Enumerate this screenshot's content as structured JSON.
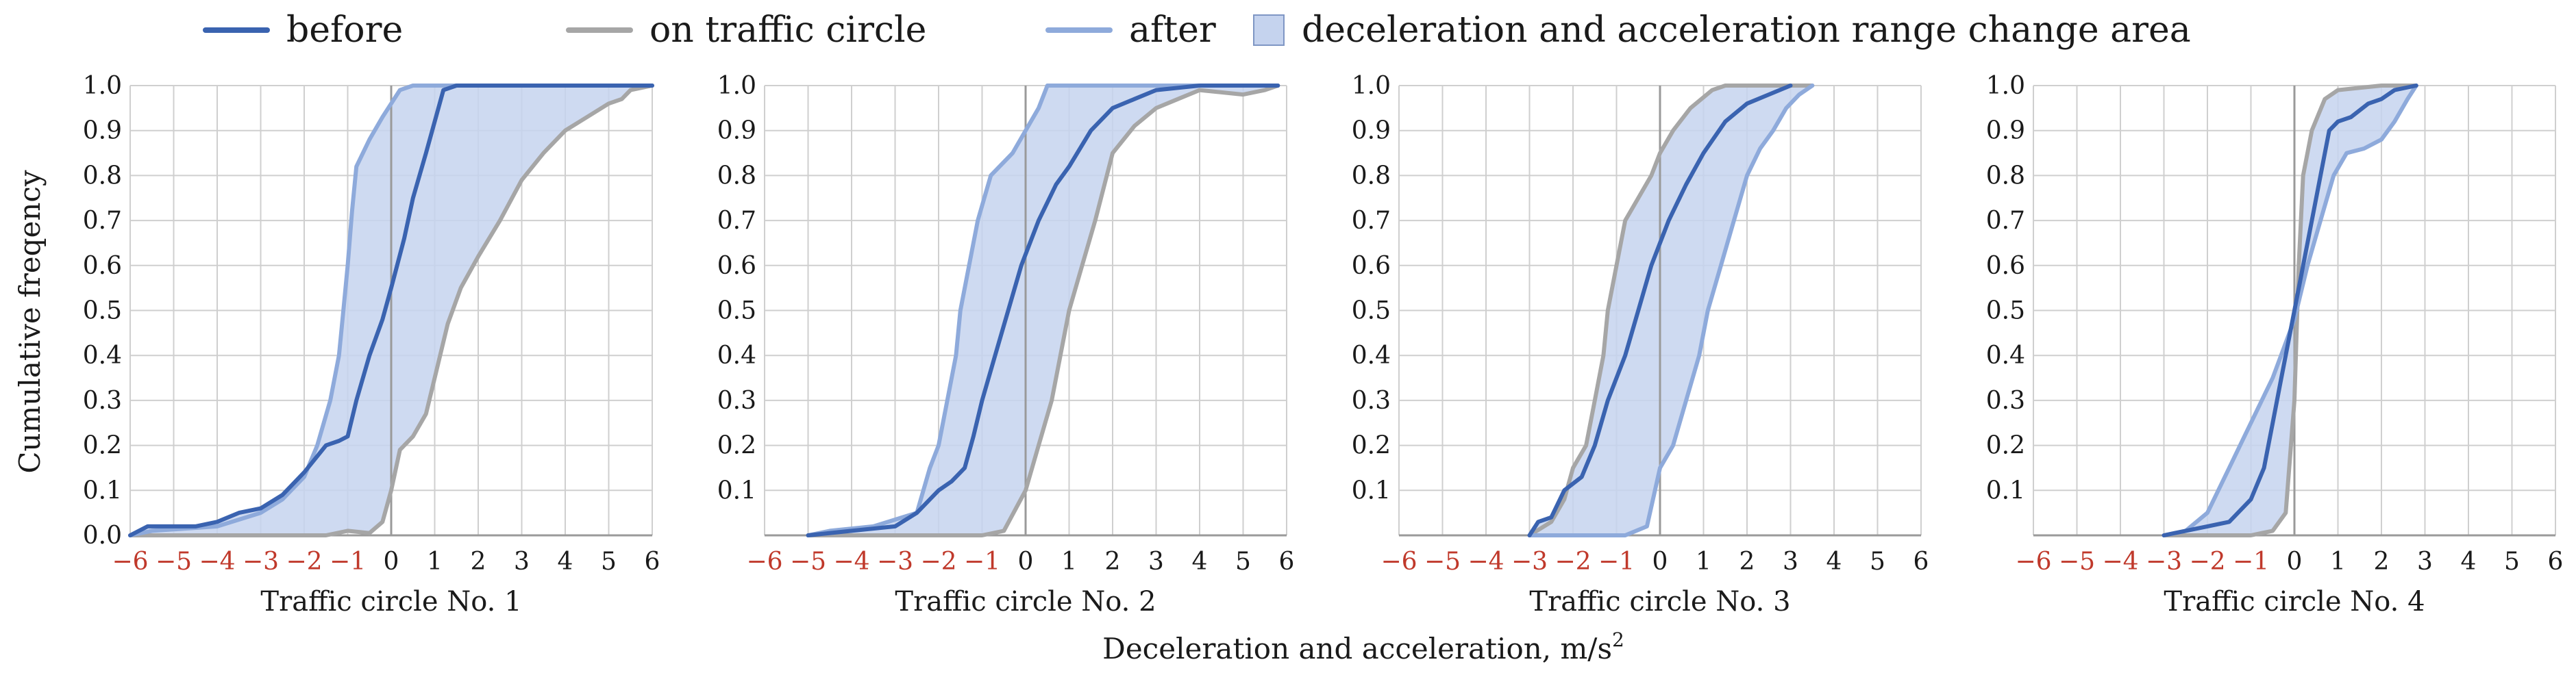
{
  "chart_data": {
    "type": "line",
    "ylabel": "Cumulative freqency",
    "xlabel": "Deceleration and acceleration, m/s",
    "xlabel_sup": "2",
    "xlim": [
      -6,
      6
    ],
    "ylim": [
      0,
      1
    ],
    "xticks": [
      "−6",
      "−5",
      "−4",
      "−3",
      "−2",
      "−1",
      "0",
      "1",
      "2",
      "3",
      "4",
      "5",
      "6"
    ],
    "yticks": [
      "0.0",
      "0.1",
      "0.2",
      "0.3",
      "0.4",
      "0.5",
      "0.6",
      "0.7",
      "0.8",
      "0.9",
      "1.0"
    ],
    "legend": {
      "position": "top",
      "entries": [
        {
          "key": "before",
          "label": "before"
        },
        {
          "key": "on",
          "label": "on traffic circle"
        },
        {
          "key": "after",
          "label": "after"
        },
        {
          "key": "area",
          "label": "deceleration and acceleration range change area"
        }
      ]
    },
    "colors": {
      "before": "#3a63b0",
      "on": "#a6a6a6",
      "after": "#8eaadb",
      "area": "#c5d3ee",
      "area_edge": "#7f96c4",
      "grid": "#cfcfcf",
      "axis": "#9a9a9a"
    },
    "panels": [
      {
        "title": "Traffic circle No. 1",
        "series": [
          {
            "key": "before",
            "name": "before",
            "points": [
              [
                -6,
                0
              ],
              [
                -5.6,
                0.02
              ],
              [
                -5,
                0.02
              ],
              [
                -4.5,
                0.02
              ],
              [
                -4,
                0.03
              ],
              [
                -3.5,
                0.05
              ],
              [
                -3,
                0.06
              ],
              [
                -2.5,
                0.09
              ],
              [
                -2,
                0.14
              ],
              [
                -1.5,
                0.2
              ],
              [
                -1.2,
                0.21
              ],
              [
                -1,
                0.22
              ],
              [
                -0.8,
                0.3
              ],
              [
                -0.5,
                0.4
              ],
              [
                -0.2,
                0.48
              ],
              [
                0,
                0.55
              ],
              [
                0.3,
                0.66
              ],
              [
                0.5,
                0.75
              ],
              [
                0.8,
                0.85
              ],
              [
                1,
                0.92
              ],
              [
                1.2,
                0.99
              ],
              [
                1.5,
                1
              ],
              [
                6,
                1
              ]
            ]
          },
          {
            "key": "on",
            "name": "on traffic circle",
            "points": [
              [
                -6,
                0
              ],
              [
                -1.5,
                0
              ],
              [
                -1,
                0.01
              ],
              [
                -0.5,
                0.005
              ],
              [
                -0.2,
                0.03
              ],
              [
                0,
                0.1
              ],
              [
                0.2,
                0.19
              ],
              [
                0.5,
                0.22
              ],
              [
                0.8,
                0.27
              ],
              [
                1,
                0.35
              ],
              [
                1.3,
                0.47
              ],
              [
                1.6,
                0.55
              ],
              [
                2,
                0.62
              ],
              [
                2.5,
                0.7
              ],
              [
                3,
                0.79
              ],
              [
                3.5,
                0.85
              ],
              [
                4,
                0.9
              ],
              [
                4.5,
                0.93
              ],
              [
                5,
                0.96
              ],
              [
                5.3,
                0.97
              ],
              [
                5.5,
                0.99
              ],
              [
                6,
                1
              ]
            ]
          },
          {
            "key": "after",
            "name": "after",
            "points": [
              [
                -6,
                0
              ],
              [
                -5.5,
                0.01
              ],
              [
                -4,
                0.02
              ],
              [
                -3,
                0.05
              ],
              [
                -2.5,
                0.08
              ],
              [
                -2,
                0.13
              ],
              [
                -1.7,
                0.2
              ],
              [
                -1.4,
                0.3
              ],
              [
                -1.2,
                0.4
              ],
              [
                -1.1,
                0.5
              ],
              [
                -1,
                0.6
              ],
              [
                -0.9,
                0.72
              ],
              [
                -0.8,
                0.82
              ],
              [
                -0.5,
                0.88
              ],
              [
                -0.2,
                0.93
              ],
              [
                0.2,
                0.99
              ],
              [
                0.5,
                1
              ],
              [
                6,
                1
              ]
            ]
          }
        ]
      },
      {
        "title": "Traffic circle No. 2",
        "series": [
          {
            "key": "before",
            "name": "before",
            "points": [
              [
                -5,
                0
              ],
              [
                -4,
                0.01
              ],
              [
                -3,
                0.02
              ],
              [
                -2.5,
                0.05
              ],
              [
                -2,
                0.1
              ],
              [
                -1.7,
                0.12
              ],
              [
                -1.4,
                0.15
              ],
              [
                -1.2,
                0.22
              ],
              [
                -1,
                0.3
              ],
              [
                -0.7,
                0.4
              ],
              [
                -0.4,
                0.5
              ],
              [
                -0.1,
                0.6
              ],
              [
                0.3,
                0.7
              ],
              [
                0.7,
                0.78
              ],
              [
                1,
                0.82
              ],
              [
                1.5,
                0.9
              ],
              [
                2,
                0.95
              ],
              [
                2.5,
                0.97
              ],
              [
                3,
                0.99
              ],
              [
                4,
                1
              ],
              [
                5.8,
                1
              ]
            ]
          },
          {
            "key": "on",
            "name": "on traffic circle",
            "points": [
              [
                -5,
                0
              ],
              [
                -1,
                0
              ],
              [
                -0.5,
                0.01
              ],
              [
                0,
                0.1
              ],
              [
                0.3,
                0.2
              ],
              [
                0.6,
                0.3
              ],
              [
                0.8,
                0.4
              ],
              [
                1,
                0.5
              ],
              [
                1.3,
                0.6
              ],
              [
                1.6,
                0.7
              ],
              [
                2,
                0.85
              ],
              [
                2.5,
                0.91
              ],
              [
                3,
                0.95
              ],
              [
                3.5,
                0.97
              ],
              [
                4,
                0.99
              ],
              [
                5,
                0.98
              ],
              [
                5.5,
                0.99
              ],
              [
                5.8,
                1
              ]
            ]
          },
          {
            "key": "after",
            "name": "after",
            "points": [
              [
                -5,
                0
              ],
              [
                -4.5,
                0.01
              ],
              [
                -3.5,
                0.02
              ],
              [
                -2.5,
                0.05
              ],
              [
                -2.2,
                0.15
              ],
              [
                -2,
                0.2
              ],
              [
                -1.8,
                0.3
              ],
              [
                -1.6,
                0.4
              ],
              [
                -1.5,
                0.5
              ],
              [
                -1.3,
                0.6
              ],
              [
                -1.1,
                0.7
              ],
              [
                -0.8,
                0.8
              ],
              [
                -0.3,
                0.85
              ],
              [
                0,
                0.9
              ],
              [
                0.3,
                0.95
              ],
              [
                0.5,
                1
              ],
              [
                5.8,
                1
              ]
            ]
          }
        ]
      },
      {
        "title": "Traffic circle No. 3",
        "series": [
          {
            "key": "before",
            "name": "before",
            "points": [
              [
                -3,
                0
              ],
              [
                -2.8,
                0.03
              ],
              [
                -2.5,
                0.04
              ],
              [
                -2.2,
                0.1
              ],
              [
                -1.8,
                0.13
              ],
              [
                -1.5,
                0.2
              ],
              [
                -1.2,
                0.3
              ],
              [
                -0.8,
                0.4
              ],
              [
                -0.5,
                0.5
              ],
              [
                -0.2,
                0.6
              ],
              [
                0.2,
                0.7
              ],
              [
                0.6,
                0.78
              ],
              [
                1,
                0.85
              ],
              [
                1.5,
                0.92
              ],
              [
                2,
                0.96
              ],
              [
                2.5,
                0.98
              ],
              [
                3,
                1
              ]
            ]
          },
          {
            "key": "on",
            "name": "on traffic circle",
            "points": [
              [
                -3,
                0
              ],
              [
                -2.5,
                0.03
              ],
              [
                -2.2,
                0.08
              ],
              [
                -2,
                0.15
              ],
              [
                -1.7,
                0.2
              ],
              [
                -1.5,
                0.3
              ],
              [
                -1.3,
                0.4
              ],
              [
                -1.2,
                0.5
              ],
              [
                -1,
                0.6
              ],
              [
                -0.8,
                0.7
              ],
              [
                -0.5,
                0.75
              ],
              [
                -0.2,
                0.8
              ],
              [
                0,
                0.85
              ],
              [
                0.3,
                0.9
              ],
              [
                0.7,
                0.95
              ],
              [
                1.2,
                0.99
              ],
              [
                1.5,
                1
              ],
              [
                3.5,
                1
              ]
            ]
          },
          {
            "key": "after",
            "name": "after",
            "points": [
              [
                -3,
                0
              ],
              [
                -0.8,
                0
              ],
              [
                -0.3,
                0.02
              ],
              [
                0,
                0.15
              ],
              [
                0.3,
                0.2
              ],
              [
                0.6,
                0.3
              ],
              [
                0.9,
                0.4
              ],
              [
                1.1,
                0.5
              ],
              [
                1.4,
                0.6
              ],
              [
                1.7,
                0.7
              ],
              [
                2,
                0.8
              ],
              [
                2.3,
                0.86
              ],
              [
                2.6,
                0.9
              ],
              [
                2.9,
                0.95
              ],
              [
                3.2,
                0.98
              ],
              [
                3.5,
                1
              ]
            ]
          }
        ]
      },
      {
        "title": "Traffic circle No. 4",
        "series": [
          {
            "key": "before",
            "name": "before",
            "points": [
              [
                -3,
                0
              ],
              [
                -2.5,
                0.01
              ],
              [
                -2,
                0.02
              ],
              [
                -1.5,
                0.03
              ],
              [
                -1,
                0.08
              ],
              [
                -0.7,
                0.15
              ],
              [
                -0.5,
                0.25
              ],
              [
                -0.3,
                0.35
              ],
              [
                0,
                0.5
              ],
              [
                0.3,
                0.65
              ],
              [
                0.6,
                0.8
              ],
              [
                0.8,
                0.9
              ],
              [
                1,
                0.92
              ],
              [
                1.3,
                0.93
              ],
              [
                1.7,
                0.96
              ],
              [
                2,
                0.97
              ],
              [
                2.3,
                0.99
              ],
              [
                2.8,
                1
              ]
            ]
          },
          {
            "key": "on",
            "name": "on traffic circle",
            "points": [
              [
                -3,
                0
              ],
              [
                -1,
                0
              ],
              [
                -0.5,
                0.01
              ],
              [
                -0.2,
                0.05
              ],
              [
                0,
                0.3
              ],
              [
                0.1,
                0.6
              ],
              [
                0.2,
                0.8
              ],
              [
                0.4,
                0.9
              ],
              [
                0.7,
                0.97
              ],
              [
                1,
                0.99
              ],
              [
                2,
                1
              ],
              [
                2.8,
                1
              ]
            ]
          },
          {
            "key": "after",
            "name": "after",
            "points": [
              [
                -3,
                0
              ],
              [
                -2.5,
                0.01
              ],
              [
                -2,
                0.05
              ],
              [
                -1.5,
                0.15
              ],
              [
                -1,
                0.25
              ],
              [
                -0.5,
                0.35
              ],
              [
                0,
                0.48
              ],
              [
                0.3,
                0.6
              ],
              [
                0.6,
                0.7
              ],
              [
                0.9,
                0.8
              ],
              [
                1.2,
                0.85
              ],
              [
                1.6,
                0.86
              ],
              [
                2,
                0.88
              ],
              [
                2.3,
                0.92
              ],
              [
                2.6,
                0.97
              ],
              [
                2.8,
                1
              ]
            ]
          }
        ]
      }
    ]
  }
}
